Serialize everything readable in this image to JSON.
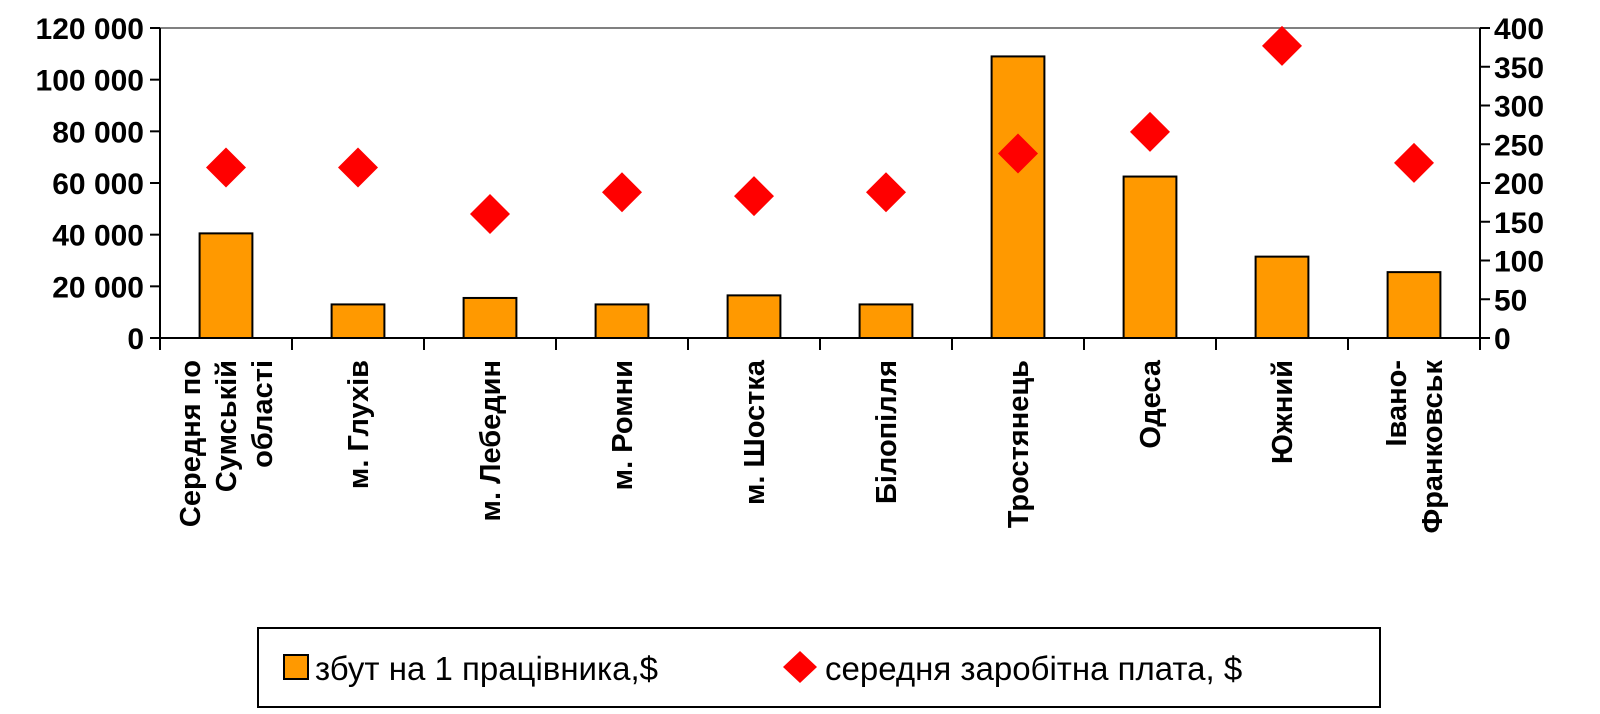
{
  "chart_data": {
    "type": "bar",
    "categories": [
      [
        "Середня по",
        "Сумській",
        "області"
      ],
      [
        "м. Глухів"
      ],
      [
        "м. Лебедин"
      ],
      [
        "м. Ромни"
      ],
      [
        "м. Шостка"
      ],
      [
        "Білопілля"
      ],
      [
        "Тростянець"
      ],
      [
        "Одеса"
      ],
      [
        "Южний"
      ],
      [
        "Івано-",
        "Франковськ"
      ]
    ],
    "series": [
      {
        "name": "збут на 1 працівника,$",
        "type": "bar",
        "axis": "left",
        "color": "#FF9900",
        "values": [
          40500,
          13000,
          15500,
          13000,
          16500,
          13000,
          109000,
          62500,
          31500,
          25500
        ]
      },
      {
        "name": "середня заробітна плата, $",
        "type": "scatter",
        "marker": "diamond",
        "axis": "right",
        "color": "#FF0000",
        "values": [
          220,
          220,
          160,
          188,
          183,
          188,
          238,
          266,
          377,
          226
        ]
      }
    ],
    "y_left": {
      "ylim": [
        0,
        120000
      ],
      "ticks": [
        "0",
        "20 000",
        "40 000",
        "60 000",
        "80 000",
        "100 000",
        "120 000"
      ]
    },
    "y_right": {
      "ylim": [
        0,
        400
      ],
      "ticks": [
        "0",
        "50",
        "100",
        "150",
        "200",
        "250",
        "300",
        "350",
        "400"
      ]
    },
    "grid": false,
    "legend_position": "bottom"
  }
}
